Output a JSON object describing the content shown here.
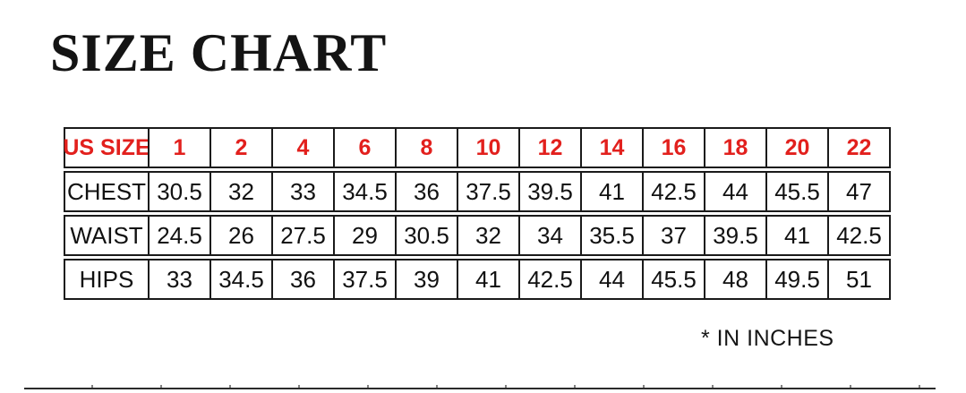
{
  "title": "SIZE CHART",
  "footnote": "* IN INCHES",
  "colors": {
    "header_red": "#e2201d",
    "table_border": "#1a1a1a",
    "text_black": "#111111",
    "bottom_rule_gray": "#2b2b2b"
  },
  "size_table": {
    "corner_label": "US SIZE",
    "sizes": [
      "1",
      "2",
      "4",
      "6",
      "8",
      "10",
      "12",
      "14",
      "16",
      "18",
      "20",
      "22"
    ],
    "measurements": [
      {
        "label": "CHEST",
        "values": [
          "30.5",
          "32",
          "33",
          "34.5",
          "36",
          "37.5",
          "39.5",
          "41",
          "42.5",
          "44",
          "45.5",
          "47"
        ]
      },
      {
        "label": "WAIST",
        "values": [
          "24.5",
          "26",
          "27.5",
          "29",
          "30.5",
          "32",
          "34",
          "35.5",
          "37",
          "39.5",
          "41",
          "42.5"
        ]
      },
      {
        "label": "HIPS",
        "values": [
          "33",
          "34.5",
          "36",
          "37.5",
          "39",
          "41",
          "42.5",
          "44",
          "45.5",
          "48",
          "49.5",
          "51"
        ]
      }
    ]
  }
}
